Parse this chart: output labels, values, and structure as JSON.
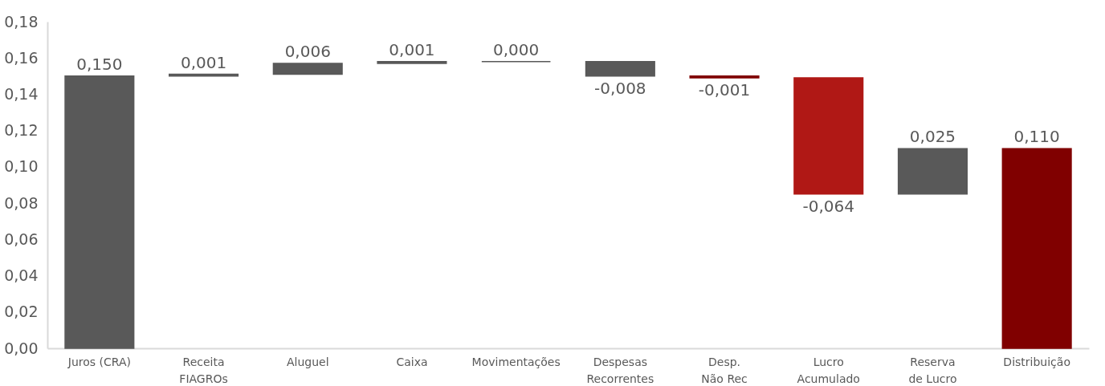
{
  "chart_data": {
    "type": "bar",
    "categories": [
      "Juros (CRA)",
      "Receita FIAGROs",
      "Aluguel",
      "Caixa",
      "Movimentações",
      "Despesas Recorrentes",
      "Desp. Não Rec",
      "Lucro Acumulado",
      "Reserva de Lucro",
      "Distribuição"
    ],
    "values": [
      0.15,
      0.001,
      0.006,
      0.001,
      0.0,
      -0.008,
      -0.001,
      -0.064,
      0.025,
      0.11
    ],
    "base": [
      0,
      0.15,
      0.151,
      0.157,
      0.158,
      0.158,
      0.15,
      0.149,
      0.085,
      0
    ],
    "colors": [
      "#595959",
      "#595959",
      "#595959",
      "#595959",
      "#595959",
      "#595959",
      "#800000",
      "#b01815",
      "#595959",
      "#800000"
    ],
    "ylim": [
      0,
      0.18
    ],
    "yticks": [
      {
        "value": 0,
        "label": "0,00"
      },
      {
        "value": 0.02,
        "label": "0,02"
      },
      {
        "value": 0.04,
        "label": "0,04"
      },
      {
        "value": 0.06,
        "label": "0,06"
      },
      {
        "value": 0.08,
        "label": "0,08"
      },
      {
        "value": 0.1,
        "label": "0,10"
      },
      {
        "value": 0.12,
        "label": "0,12"
      },
      {
        "value": 0.14,
        "label": "0,14"
      },
      {
        "value": 0.16,
        "label": "0,16"
      },
      {
        "value": 0.18,
        "label": "0,18"
      }
    ],
    "value_labels": [
      "0,150",
      "0,001",
      "0,006",
      "0,001",
      "0,000",
      "-0,008",
      "-0,001",
      "-0,064",
      "0,025",
      "0,110"
    ],
    "grid": false
  }
}
